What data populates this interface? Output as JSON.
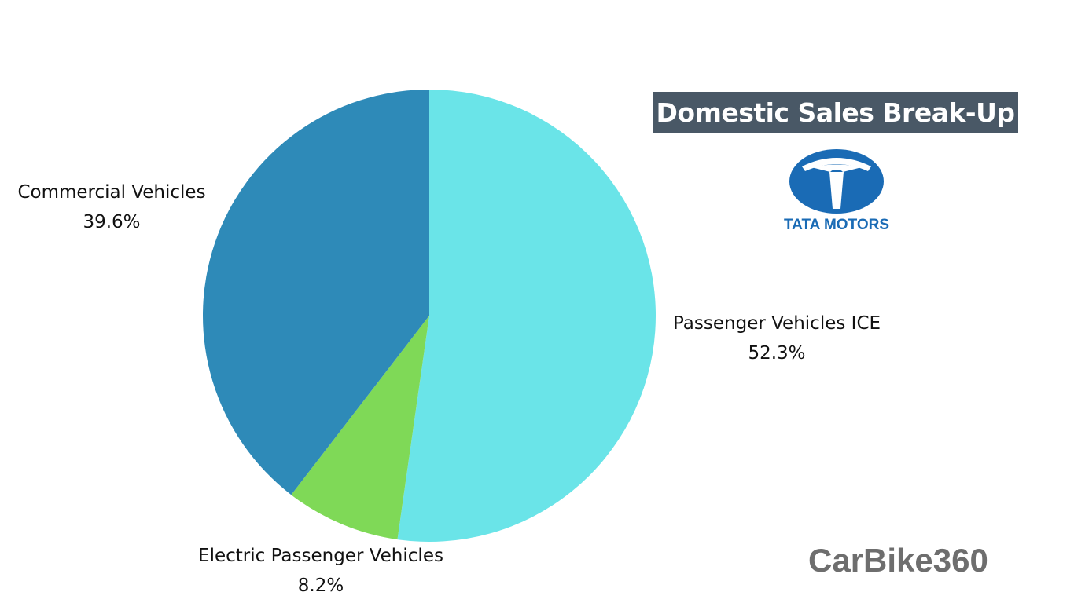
{
  "chart_data": {
    "type": "pie",
    "title": "Domestic Sales Break-Up",
    "slices": [
      {
        "name": "Passenger Vehicles ICE",
        "value": 52.3,
        "label": "52.3%",
        "color": "#6AE4E8"
      },
      {
        "name": "Electric Passenger Vehicles",
        "value": 8.2,
        "label": "8.2%",
        "color": "#7FD957"
      },
      {
        "name": "Commercial Vehicles",
        "value": 39.6,
        "label": "39.6%",
        "color": "#2E8AB8"
      }
    ],
    "start_angle_deg": 0,
    "direction": "clockwise"
  },
  "branding": {
    "logo_text": "TATA MOTORS",
    "logo_color": "#1A6BB5",
    "watermark": "CarBike360",
    "title_bg": "#495866"
  }
}
